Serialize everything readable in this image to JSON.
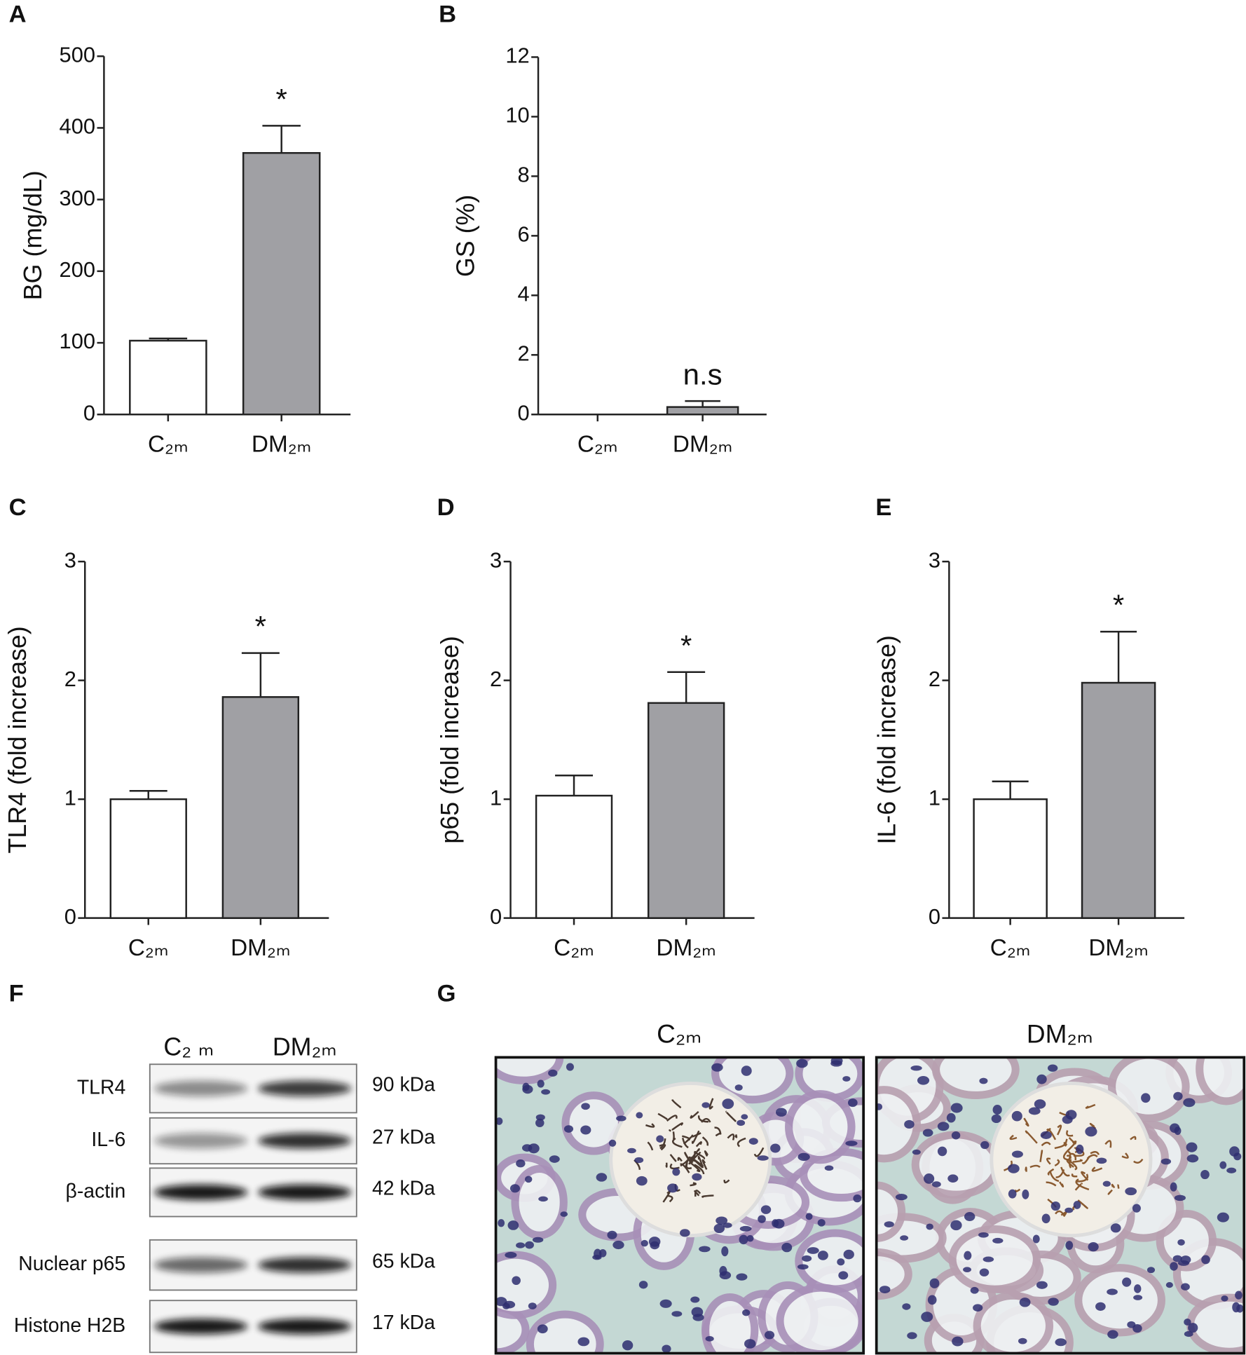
{
  "chart_data": [
    {
      "type": "bar",
      "panel": "A",
      "ylabel": "BG (mg/dL)",
      "categories": [
        "C₂ₘ",
        "DM₂ₘ"
      ],
      "values": [
        103,
        365
      ],
      "errors": [
        3,
        38
      ],
      "colors": [
        "#ffffff",
        "#a0a0a4"
      ],
      "annotations": [
        null,
        "*"
      ],
      "ylim": [
        0,
        500
      ],
      "yticks": [
        0,
        100,
        200,
        300,
        400,
        500
      ]
    },
    {
      "type": "bar",
      "panel": "B",
      "ylabel": "GS (%)",
      "categories": [
        "C₂ₘ",
        "DM₂ₘ"
      ],
      "values": [
        0,
        0.25
      ],
      "errors": [
        0,
        0.2
      ],
      "colors": [
        "#ffffff",
        "#a0a0a4"
      ],
      "annotations": [
        null,
        "n.s"
      ],
      "ylim": [
        0,
        12
      ],
      "yticks": [
        0,
        2,
        4,
        6,
        8,
        10,
        12
      ]
    },
    {
      "type": "bar",
      "panel": "C",
      "ylabel": "TLR4 (fold increase)",
      "categories": [
        "C₂ₘ",
        "DM₂ₘ"
      ],
      "values": [
        1.0,
        1.86
      ],
      "errors": [
        0.07,
        0.37
      ],
      "colors": [
        "#ffffff",
        "#a0a0a4"
      ],
      "annotations": [
        null,
        "*"
      ],
      "ylim": [
        0,
        3
      ],
      "yticks": [
        0,
        1,
        2,
        3
      ]
    },
    {
      "type": "bar",
      "panel": "D",
      "ylabel": "p65 (fold increase)",
      "categories": [
        "C₂ₘ",
        "DM₂ₘ"
      ],
      "values": [
        1.03,
        1.81
      ],
      "errors": [
        0.17,
        0.26
      ],
      "colors": [
        "#ffffff",
        "#a0a0a4"
      ],
      "annotations": [
        null,
        "*"
      ],
      "ylim": [
        0,
        3
      ],
      "yticks": [
        0,
        1,
        2,
        3
      ]
    },
    {
      "type": "bar",
      "panel": "E",
      "ylabel": "IL-6 (fold increase)",
      "categories": [
        "C₂ₘ",
        "DM₂ₘ"
      ],
      "values": [
        1.0,
        1.98
      ],
      "errors": [
        0.15,
        0.43
      ],
      "colors": [
        "#ffffff",
        "#a0a0a4"
      ],
      "annotations": [
        null,
        "*"
      ],
      "ylim": [
        0,
        3
      ],
      "yticks": [
        0,
        1,
        2,
        3
      ]
    }
  ],
  "blot": {
    "panel": "F",
    "columns": [
      "C₂ ₘ",
      "DM₂ₘ"
    ],
    "rows": [
      {
        "label": "TLR4",
        "size": "90 kDa"
      },
      {
        "label": "IL-6",
        "size": "27 kDa"
      },
      {
        "label": "β-actin",
        "size": "42 kDa"
      },
      {
        "label": "Nuclear p65",
        "size": "65 kDa"
      },
      {
        "label": "Histone H2B",
        "size": "17 kDa"
      }
    ]
  },
  "histology": {
    "panel": "G",
    "images": [
      {
        "title": "C₂ₘ"
      },
      {
        "title": "DM₂ₘ"
      }
    ]
  }
}
